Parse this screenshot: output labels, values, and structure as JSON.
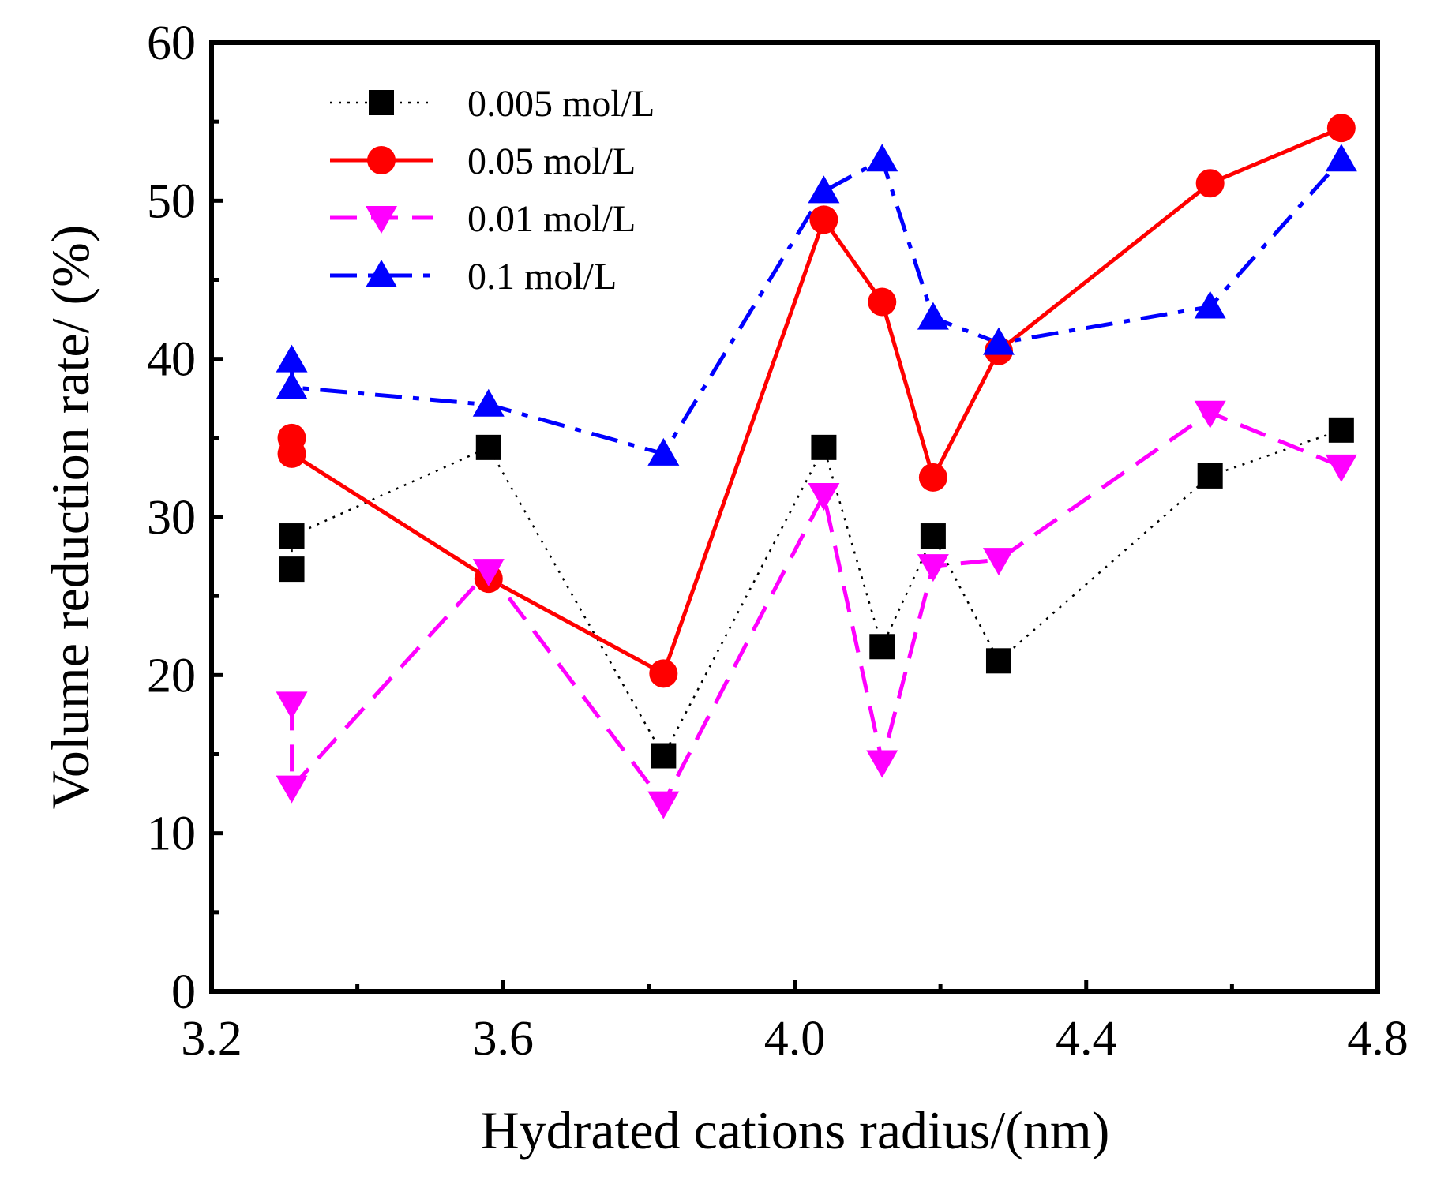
{
  "chart_data": {
    "type": "line",
    "title": "",
    "xlabel": "Hydrated cations radius/(nm)",
    "ylabel": "Volume reduction rate/ (%)",
    "xlim": [
      3.2,
      4.8
    ],
    "ylim": [
      0,
      60
    ],
    "xticks": [
      3.2,
      3.6,
      4.0,
      4.4,
      4.8
    ],
    "xtick_labels": [
      "3.2",
      "3.6",
      "4.0",
      "4.4",
      "4.8"
    ],
    "yticks": [
      0,
      10,
      20,
      30,
      40,
      50,
      60
    ],
    "ytick_labels": [
      "0",
      "10",
      "20",
      "30",
      "40",
      "50",
      "60"
    ],
    "grid": false,
    "legend_position": "top-left",
    "series": [
      {
        "name": "0.005 mol/L",
        "color": "#000000",
        "line_style": "dotted",
        "marker": "square",
        "x": [
          3.31,
          3.31,
          3.58,
          3.82,
          4.04,
          4.12,
          4.19,
          4.28,
          4.57,
          4.75
        ],
        "y": [
          26.7,
          28.8,
          34.4,
          14.9,
          34.4,
          21.8,
          28.8,
          20.9,
          32.6,
          35.5
        ]
      },
      {
        "name": "0.05 mol/L",
        "color": "#ff0000",
        "line_style": "solid",
        "marker": "circle",
        "x": [
          3.31,
          3.31,
          3.58,
          3.82,
          4.04,
          4.12,
          4.19,
          4.28,
          4.57,
          4.75
        ],
        "y": [
          35.0,
          34.0,
          26.1,
          20.1,
          48.8,
          43.6,
          32.5,
          40.5,
          51.1,
          54.6
        ]
      },
      {
        "name": "0.01 mol/L",
        "color": "#ff00ff",
        "line_style": "dashed",
        "marker": "triangle-down",
        "x": [
          3.31,
          3.31,
          3.58,
          3.82,
          4.04,
          4.12,
          4.19,
          4.28,
          4.57,
          4.75
        ],
        "y": [
          18.2,
          12.9,
          26.6,
          11.9,
          31.4,
          14.5,
          26.9,
          27.3,
          36.6,
          33.2
        ]
      },
      {
        "name": "0.1 mol/L",
        "color": "#0000ff",
        "line_style": "dash-dot",
        "marker": "triangle-up",
        "x": [
          3.31,
          3.31,
          3.58,
          3.82,
          4.04,
          4.12,
          4.19,
          4.28,
          4.57,
          4.75
        ],
        "y": [
          39.9,
          38.2,
          37.1,
          34.0,
          50.6,
          52.6,
          42.6,
          41.0,
          43.3,
          52.6
        ]
      }
    ]
  }
}
